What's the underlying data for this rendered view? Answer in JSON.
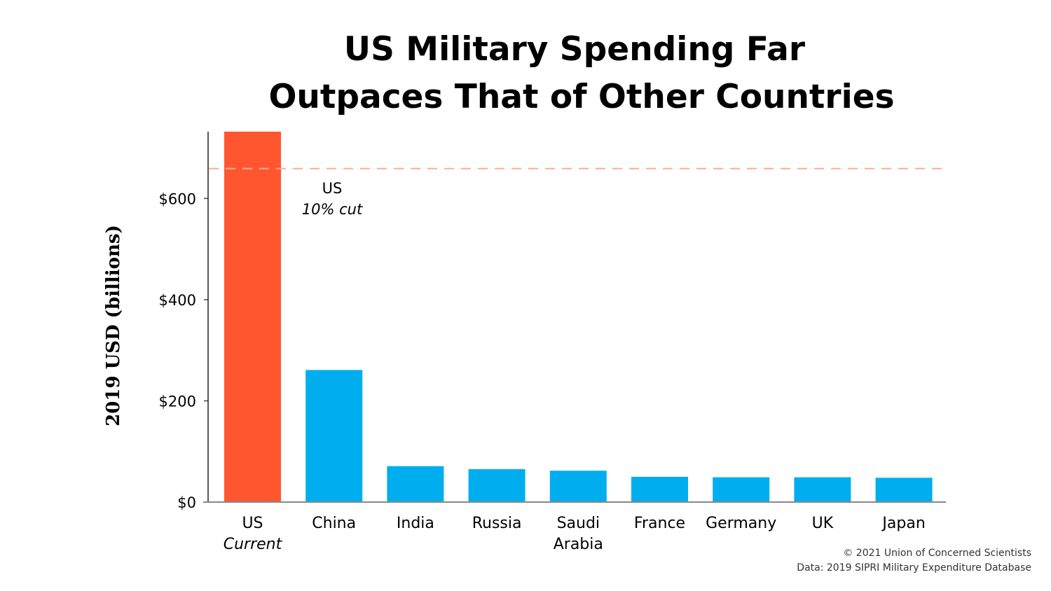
{
  "chart_data": {
    "type": "bar",
    "title": [
      "US Military Spending Far",
      "Outpaces That of Other Countries"
    ],
    "xlabel": "",
    "ylabel": "2019 USD (billions)",
    "ylim": [
      0,
      732
    ],
    "yticks": [
      0,
      200,
      400,
      600
    ],
    "ytick_labels": [
      "$0",
      "$200",
      "$400",
      "$600"
    ],
    "grid": false,
    "categories": [
      {
        "label": "US",
        "sublabel": "Current"
      },
      {
        "label": "China",
        "sublabel": ""
      },
      {
        "label": "India",
        "sublabel": ""
      },
      {
        "label": "Russia",
        "sublabel": ""
      },
      {
        "label": "Saudi",
        "sublabel": "Arabia"
      },
      {
        "label": "France",
        "sublabel": ""
      },
      {
        "label": "Germany",
        "sublabel": ""
      },
      {
        "label": "UK",
        "sublabel": ""
      },
      {
        "label": "Japan",
        "sublabel": ""
      }
    ],
    "values": [
      732,
      261,
      71,
      65,
      62,
      50,
      49,
      49,
      48
    ],
    "colors": [
      "#ff5630",
      "#00aeef",
      "#00aeef",
      "#00aeef",
      "#00aeef",
      "#00aeef",
      "#00aeef",
      "#00aeef",
      "#00aeef"
    ],
    "reference_line": {
      "value": 659,
      "label": "US",
      "sublabel": "10% cut",
      "color": "#ffac95",
      "style": "dashed"
    }
  },
  "credits": {
    "copyright": "© 2021 Union of Concerned Scientists",
    "source": "Data: 2019 SIPRI Military Expenditure Database"
  }
}
